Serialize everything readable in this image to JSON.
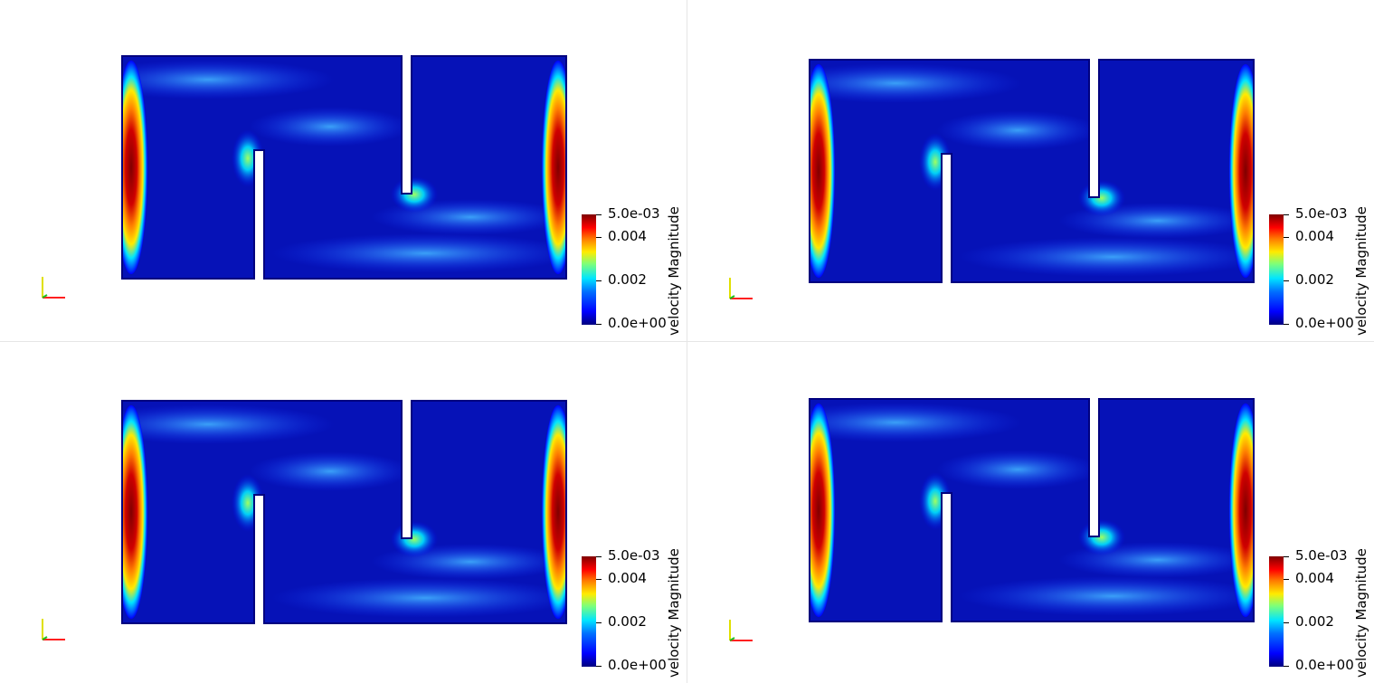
{
  "colorbar": {
    "title": "velocity Magnitude",
    "ticks": [
      "5.0e-03",
      "0.004",
      "0.002",
      "0.0e+00"
    ]
  },
  "viewports": [
    {
      "id": "view-1"
    },
    {
      "id": "view-2"
    },
    {
      "id": "view-3"
    },
    {
      "id": "view-4"
    }
  ],
  "colors": {
    "min": "#00007f",
    "low": "#0000ff",
    "mid": "#00e5ff",
    "high": "#ffeb00",
    "max": "#7f0000",
    "axis_x": "#ff2020",
    "axis_y": "#e0e000",
    "axis_z": "#20c020"
  },
  "icons": [
    "orientation-axes-icon"
  ]
}
